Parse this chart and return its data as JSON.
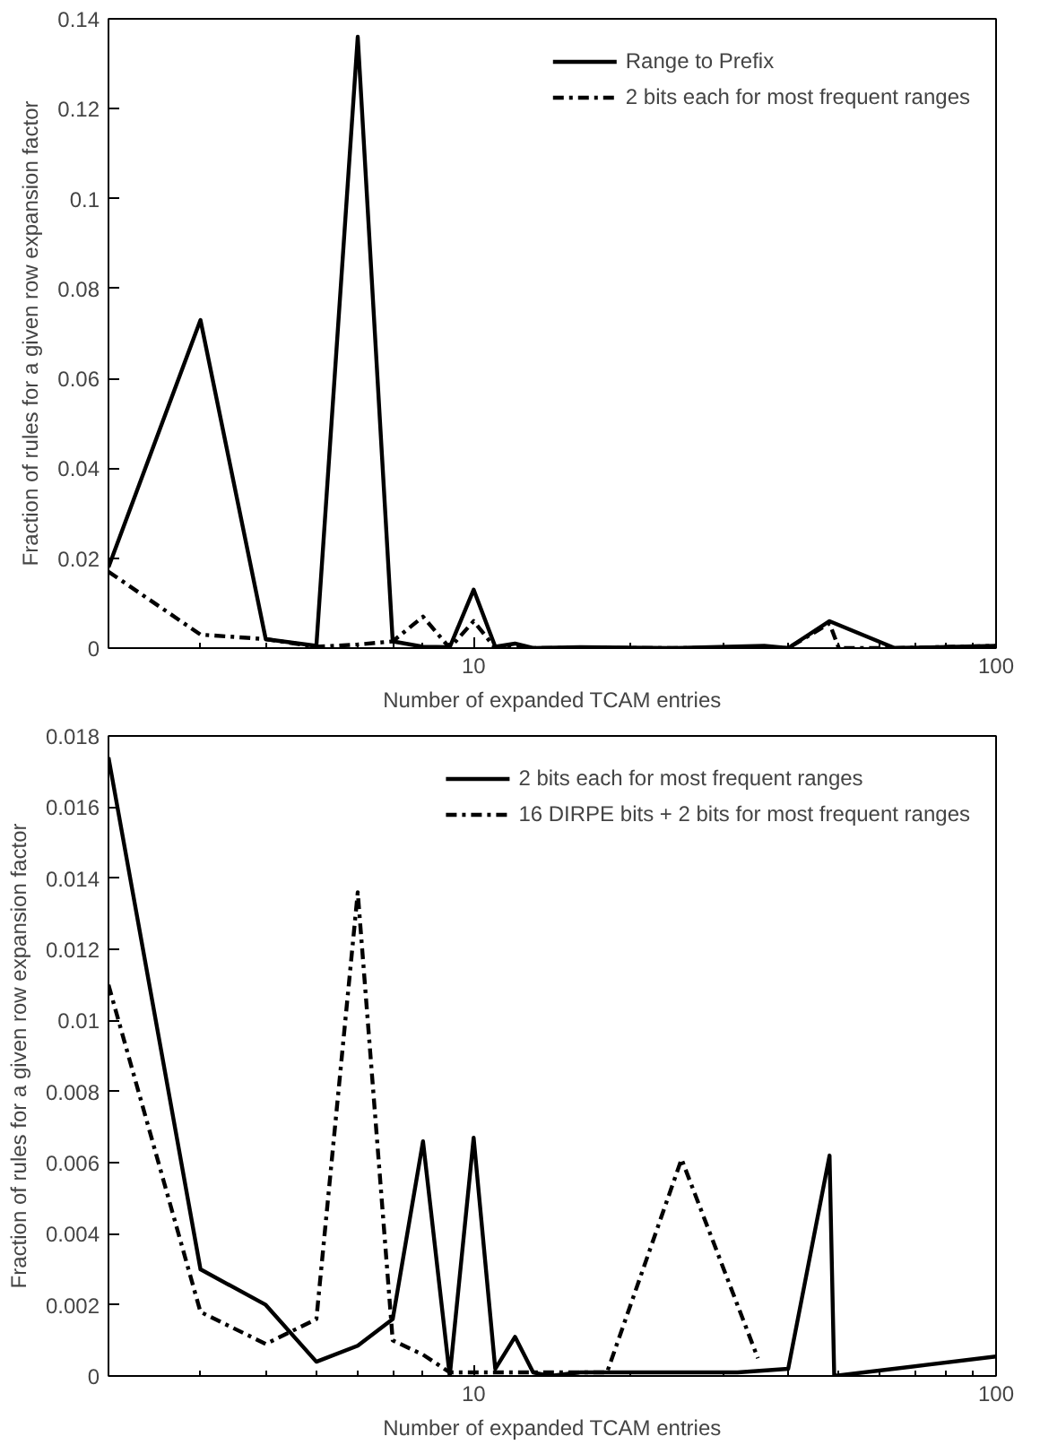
{
  "chart_data": [
    {
      "type": "line",
      "xlabel": "Number of expanded TCAM entries",
      "ylabel": "Fraction of rules for a given row expansion factor",
      "log": "x",
      "xlim": [
        2,
        100
      ],
      "xticks": [
        10,
        100
      ],
      "ylim": [
        0,
        0.14
      ],
      "yticks": [
        0,
        0.02,
        0.04,
        0.06,
        0.08,
        0.1,
        0.12,
        0.14
      ],
      "legend": "top right",
      "grid": false,
      "marker": "none",
      "series": [
        {
          "name": "Range to Prefix",
          "color": "#000000",
          "line_style": "solid",
          "x": [
            2,
            3,
            4,
            5,
            6,
            7,
            8,
            9,
            10,
            11,
            12,
            13,
            16,
            24,
            36,
            40,
            48,
            64,
            100
          ],
          "values": [
            0.018,
            0.073,
            0.002,
            0.0005,
            0.136,
            0.0015,
            0.0003,
            0.0002,
            0.013,
            0.0003,
            0.001,
            0.0,
            0.0002,
            0.0,
            0.0005,
            0.0,
            0.006,
            0.0,
            0.0005
          ]
        },
        {
          "name": "2 bits each for most frequent ranges",
          "color": "#000000",
          "line_style": "dashed",
          "x": [
            2,
            3,
            4,
            5,
            6,
            7,
            8,
            9,
            10,
            11,
            12,
            13,
            16,
            24,
            36,
            40,
            48,
            50,
            64,
            100
          ],
          "values": [
            0.017,
            0.003,
            0.002,
            0.0003,
            0.0008,
            0.0015,
            0.007,
            0.0,
            0.006,
            0.0,
            0.0003,
            0.0,
            0.0,
            0.0,
            0.0,
            0.0,
            0.0055,
            0.0,
            0.0,
            0.0005
          ]
        }
      ]
    },
    {
      "type": "line",
      "xlabel": "Number of expanded TCAM entries",
      "ylabel": "Fraction of rules for a given row expansion factor",
      "log": "x",
      "xlim": [
        2,
        100
      ],
      "xticks": [
        10,
        100
      ],
      "ylim": [
        0,
        0.018
      ],
      "yticks": [
        0,
        0.002,
        0.004,
        0.006,
        0.008,
        0.01,
        0.012,
        0.014,
        0.016,
        0.018
      ],
      "legend": "top right",
      "grid": false,
      "marker": "none",
      "series": [
        {
          "name": "2 bits each for most frequent ranges",
          "color": "#000000",
          "line_style": "solid",
          "x": [
            2,
            3,
            4,
            5,
            6,
            7,
            8,
            9,
            10,
            11,
            12,
            13,
            14,
            16,
            32,
            40,
            48,
            49,
            100
          ],
          "values": [
            0.0174,
            0.003,
            0.002,
            0.0004,
            0.00085,
            0.0016,
            0.0066,
            0.0,
            0.0067,
            0.0002,
            0.0011,
            0.0001,
            0.0,
            0.0001,
            0.0001,
            0.0002,
            0.0062,
            0.0,
            0.00055
          ]
        },
        {
          "name": "16 DIRPE bits + 2 bits for most frequent ranges",
          "color": "#000000",
          "line_style": "dashed",
          "x": [
            2,
            3,
            4,
            5,
            6,
            7,
            8,
            9,
            10,
            12,
            14,
            18,
            25,
            35
          ],
          "values": [
            0.011,
            0.0018,
            0.0009,
            0.0016,
            0.0136,
            0.001,
            0.0006,
            0.0001,
            0.0001,
            0.0001,
            0.0001,
            0.0001,
            0.0061,
            0.0005
          ]
        }
      ]
    }
  ]
}
